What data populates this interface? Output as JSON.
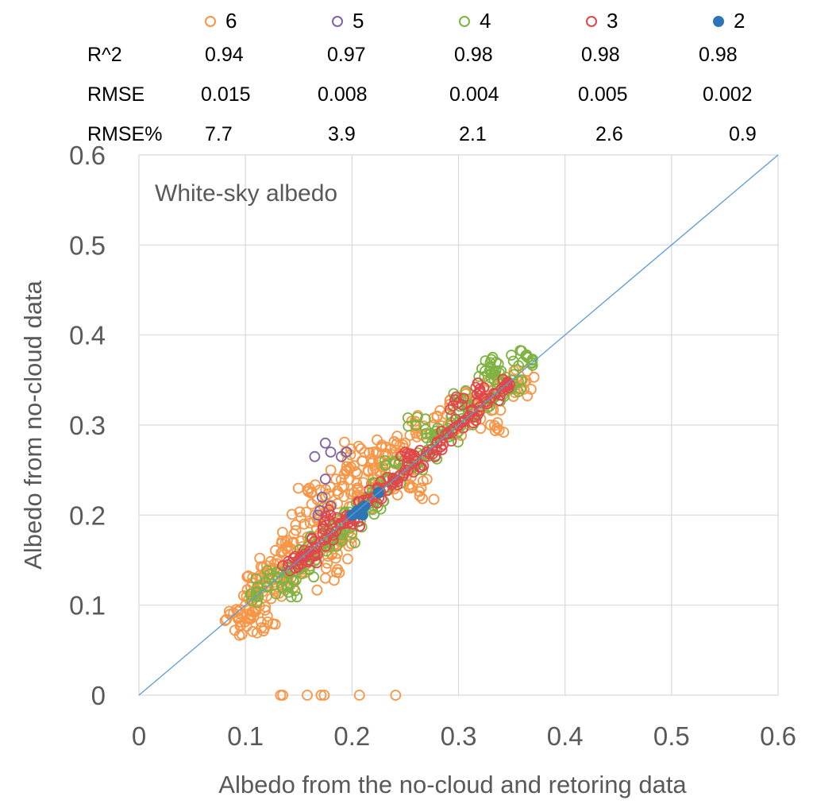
{
  "chart_data": {
    "type": "scatter",
    "annotation": "White-sky albedo",
    "xlabel": "Albedo from the no-cloud and retoring data",
    "ylabel": "Albedo from no-cloud data",
    "xlim": [
      0,
      0.6
    ],
    "ylim": [
      0,
      0.6
    ],
    "x_ticks": [
      "0",
      "0.1",
      "0.2",
      "0.3",
      "0.4",
      "0.5",
      "0.6"
    ],
    "y_ticks": [
      "0",
      "0.1",
      "0.2",
      "0.3",
      "0.4",
      "0.5",
      "0.6"
    ],
    "grid": true,
    "legend_position": "top",
    "reference_line": {
      "from": [
        0,
        0
      ],
      "to": [
        0.6,
        0.6
      ],
      "color": "#5B9BD5"
    },
    "stats": {
      "row_labels": [
        "R^2",
        "RMSE",
        "RMSE%"
      ],
      "columns": [
        {
          "series": "6",
          "values": [
            "0.94",
            "0.015",
            "7.7"
          ]
        },
        {
          "series": "5",
          "values": [
            "0.97",
            "0.008",
            "3.9"
          ]
        },
        {
          "series": "4",
          "values": [
            "0.98",
            "0.004",
            "2.1"
          ]
        },
        {
          "series": "3",
          "values": [
            "0.98",
            "0.005",
            "2.6"
          ]
        },
        {
          "series": "2",
          "values": [
            "0.98",
            "0.002",
            "0.9"
          ]
        }
      ]
    },
    "series": [
      {
        "name": "6",
        "color": "#F79646",
        "marker": "open-circle",
        "spread": 0.014,
        "points": [
          [
            0.09,
            0.072
          ],
          [
            0.093,
            0.085
          ],
          [
            0.095,
            0.095
          ],
          [
            0.1,
            0.1
          ],
          [
            0.105,
            0.12
          ],
          [
            0.11,
            0.095
          ],
          [
            0.115,
            0.13
          ],
          [
            0.12,
            0.11
          ],
          [
            0.125,
            0.14
          ],
          [
            0.13,
            0.12
          ],
          [
            0.135,
            0.16
          ],
          [
            0.14,
            0.13
          ],
          [
            0.145,
            0.17
          ],
          [
            0.15,
            0.14
          ],
          [
            0.155,
            0.19
          ],
          [
            0.16,
            0.15
          ],
          [
            0.16,
            0.23
          ],
          [
            0.165,
            0.2
          ],
          [
            0.17,
            0.18
          ],
          [
            0.175,
            0.22
          ],
          [
            0.18,
            0.2
          ],
          [
            0.185,
            0.24
          ],
          [
            0.19,
            0.17
          ],
          [
            0.195,
            0.25
          ],
          [
            0.2,
            0.21
          ],
          [
            0.205,
            0.23
          ],
          [
            0.21,
            0.26
          ],
          [
            0.215,
            0.25
          ],
          [
            0.22,
            0.27
          ],
          [
            0.225,
            0.26
          ],
          [
            0.23,
            0.24
          ],
          [
            0.24,
            0.27
          ],
          [
            0.25,
            0.28
          ],
          [
            0.255,
            0.23
          ],
          [
            0.26,
            0.3
          ],
          [
            0.27,
            0.29
          ],
          [
            0.28,
            0.31
          ],
          [
            0.29,
            0.3
          ],
          [
            0.3,
            0.33
          ],
          [
            0.31,
            0.32
          ],
          [
            0.32,
            0.34
          ],
          [
            0.33,
            0.33
          ],
          [
            0.34,
            0.34
          ],
          [
            0.35,
            0.345
          ],
          [
            0.355,
            0.34
          ],
          [
            0.36,
            0.35
          ],
          [
            0.17,
            0.16
          ],
          [
            0.14,
            0.165
          ],
          [
            0.12,
            0.13
          ],
          [
            0.105,
            0.085
          ],
          [
            0.115,
            0.075
          ],
          [
            0.135,
            0.0
          ],
          [
            0.133,
            0.0
          ],
          [
            0.158,
            0.0
          ],
          [
            0.171,
            0.0
          ],
          [
            0.174,
            0.0
          ],
          [
            0.207,
            0.0
          ],
          [
            0.241,
            0.0
          ],
          [
            0.195,
            0.27
          ],
          [
            0.212,
            0.22
          ],
          [
            0.265,
            0.23
          ],
          [
            0.245,
            0.26
          ],
          [
            0.31,
            0.3
          ],
          [
            0.33,
            0.3
          ],
          [
            0.175,
            0.13
          ],
          [
            0.185,
            0.165
          ],
          [
            0.2,
            0.175
          ]
        ]
      },
      {
        "name": "5",
        "color": "#8064A2",
        "marker": "open-circle",
        "spread": 0.0,
        "points": [
          [
            0.165,
            0.265
          ],
          [
            0.175,
            0.28
          ],
          [
            0.18,
            0.27
          ],
          [
            0.19,
            0.265
          ],
          [
            0.195,
            0.27
          ],
          [
            0.175,
            0.24
          ],
          [
            0.172,
            0.22
          ],
          [
            0.17,
            0.205
          ],
          [
            0.168,
            0.2
          ],
          [
            0.18,
            0.21
          ]
        ]
      },
      {
        "name": "4",
        "color": "#7EB342",
        "marker": "open-circle",
        "spread": 0.011,
        "points": [
          [
            0.11,
            0.11
          ],
          [
            0.12,
            0.12
          ],
          [
            0.13,
            0.13
          ],
          [
            0.14,
            0.135
          ],
          [
            0.15,
            0.15
          ],
          [
            0.16,
            0.16
          ],
          [
            0.17,
            0.17
          ],
          [
            0.18,
            0.18
          ],
          [
            0.19,
            0.19
          ],
          [
            0.2,
            0.2
          ],
          [
            0.21,
            0.21
          ],
          [
            0.22,
            0.22
          ],
          [
            0.23,
            0.23
          ],
          [
            0.24,
            0.24
          ],
          [
            0.25,
            0.25
          ],
          [
            0.26,
            0.26
          ],
          [
            0.27,
            0.27
          ],
          [
            0.28,
            0.28
          ],
          [
            0.29,
            0.29
          ],
          [
            0.3,
            0.3
          ],
          [
            0.31,
            0.31
          ],
          [
            0.32,
            0.32
          ],
          [
            0.33,
            0.33
          ],
          [
            0.34,
            0.34
          ],
          [
            0.35,
            0.35
          ],
          [
            0.36,
            0.37
          ],
          [
            0.365,
            0.375
          ],
          [
            0.34,
            0.36
          ],
          [
            0.33,
            0.365
          ],
          [
            0.325,
            0.36
          ],
          [
            0.35,
            0.34
          ],
          [
            0.3,
            0.33
          ],
          [
            0.28,
            0.29
          ],
          [
            0.26,
            0.3
          ],
          [
            0.24,
            0.26
          ],
          [
            0.22,
            0.21
          ],
          [
            0.2,
            0.18
          ],
          [
            0.18,
            0.17
          ],
          [
            0.16,
            0.14
          ],
          [
            0.14,
            0.12
          ]
        ]
      },
      {
        "name": "3",
        "color": "#E0474C",
        "marker": "open-circle",
        "spread": 0.008,
        "points": [
          [
            0.14,
            0.145
          ],
          [
            0.15,
            0.15
          ],
          [
            0.16,
            0.16
          ],
          [
            0.17,
            0.17
          ],
          [
            0.18,
            0.18
          ],
          [
            0.19,
            0.19
          ],
          [
            0.2,
            0.2
          ],
          [
            0.21,
            0.21
          ],
          [
            0.22,
            0.22
          ],
          [
            0.23,
            0.23
          ],
          [
            0.24,
            0.24
          ],
          [
            0.25,
            0.25
          ],
          [
            0.26,
            0.26
          ],
          [
            0.27,
            0.27
          ],
          [
            0.28,
            0.28
          ],
          [
            0.29,
            0.29
          ],
          [
            0.3,
            0.3
          ],
          [
            0.31,
            0.31
          ],
          [
            0.32,
            0.32
          ],
          [
            0.33,
            0.33
          ],
          [
            0.34,
            0.34
          ],
          [
            0.345,
            0.345
          ],
          [
            0.3,
            0.325
          ],
          [
            0.32,
            0.34
          ],
          [
            0.25,
            0.27
          ],
          [
            0.2,
            0.19
          ],
          [
            0.18,
            0.2
          ],
          [
            0.16,
            0.15
          ]
        ]
      },
      {
        "name": "2",
        "color": "#2E75B6",
        "marker": "filled-circle",
        "spread": 0.0,
        "points": [
          [
            0.2,
            0.2
          ],
          [
            0.203,
            0.202
          ],
          [
            0.205,
            0.205
          ],
          [
            0.207,
            0.201
          ],
          [
            0.21,
            0.208
          ],
          [
            0.212,
            0.21
          ],
          [
            0.208,
            0.204
          ],
          [
            0.225,
            0.225
          ],
          [
            0.21,
            0.2
          ]
        ]
      }
    ]
  }
}
